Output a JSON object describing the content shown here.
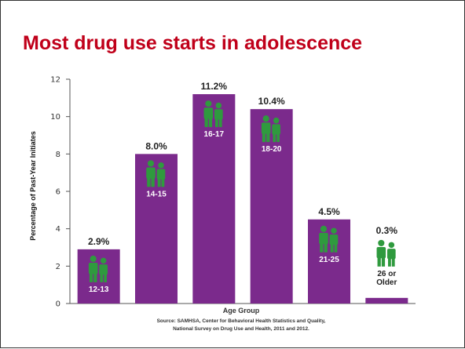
{
  "slide": {
    "title": "Most drug use starts in adolescence"
  },
  "chart_data": {
    "type": "bar",
    "categories": [
      "12-13",
      "14-15",
      "16-17",
      "18-20",
      "21-25",
      "26 or Older"
    ],
    "values": [
      2.9,
      8.0,
      11.2,
      10.4,
      4.5,
      0.3
    ],
    "value_labels": [
      "2.9%",
      "8.0%",
      "11.2%",
      "10.4%",
      "4.5%",
      "0.3%"
    ],
    "ylabel": "Percentage of Past-Year Initiates",
    "xlabel": "Age Group",
    "ylim": [
      0,
      12
    ],
    "yticks": [
      0,
      2,
      4,
      6,
      8,
      10,
      12
    ],
    "source_line1": "Source: SAMHSA, Center for Behavioral Health Statistics and Quality,",
    "source_line2": "National Survey on Drug Use and Health, 2011 and 2012.",
    "bar_color": "#7b2a8c",
    "figure_color": "#2f9a3e",
    "title_color": "#c0001a",
    "grid": false,
    "legend": "none"
  }
}
